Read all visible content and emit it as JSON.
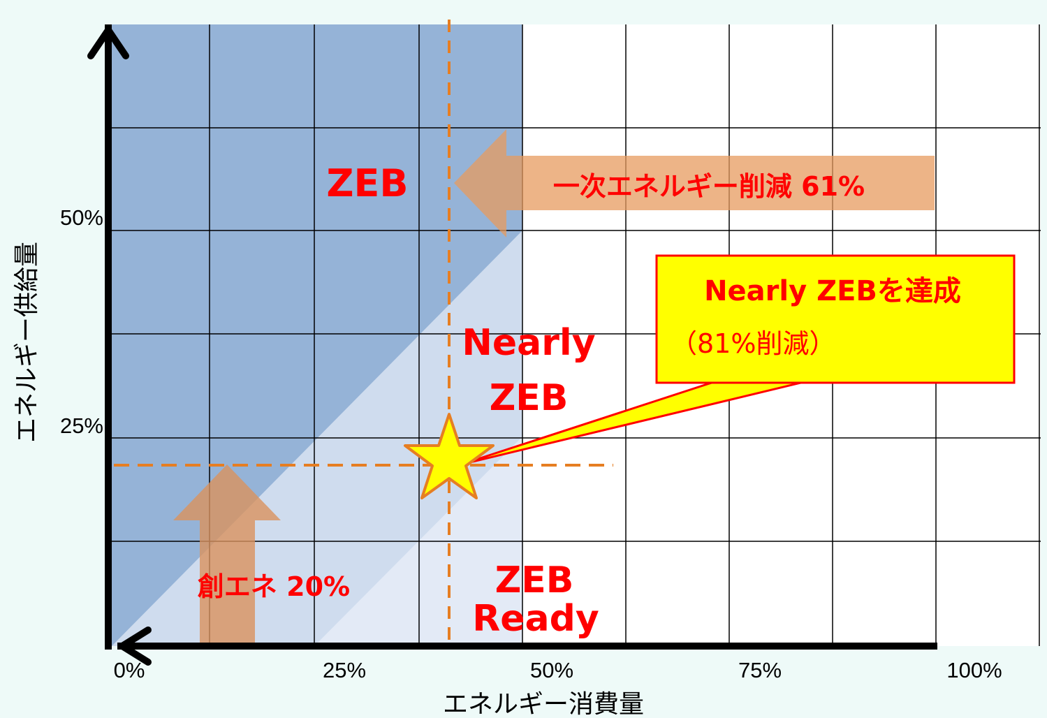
{
  "chart": {
    "y_axis_label": "エネルギー供給量",
    "x_axis_label": "エネルギー消費量",
    "x_ticks": [
      "0%",
      "25%",
      "50%",
      "75%",
      "100%"
    ],
    "y_ticks": [
      "50%",
      "25%"
    ]
  },
  "zones": {
    "zeb": "ZEB",
    "nearly_zeb_line1": "Nearly",
    "nearly_zeb_line2": "ZEB",
    "zeb_ready_line1": "ZEB",
    "zeb_ready_line2": "Ready"
  },
  "arrows": {
    "primary_energy_reduction": "一次エネルギー削減 61%",
    "energy_creation": "創エネ 20%"
  },
  "callout": {
    "title": "Nearly ZEBを達成",
    "subtitle": "（81%削減）"
  },
  "colors": {
    "zeb_zone": "#95b3d7",
    "nearly_zone": "#cfdcee",
    "ready_zone": "#e3eaf6",
    "label_red": "#ff0000",
    "arrow_orange": "#e0996b",
    "callout_fill": "#ffff00",
    "callout_border": "#ff0000",
    "dashed_orange": "#e67e22"
  }
}
